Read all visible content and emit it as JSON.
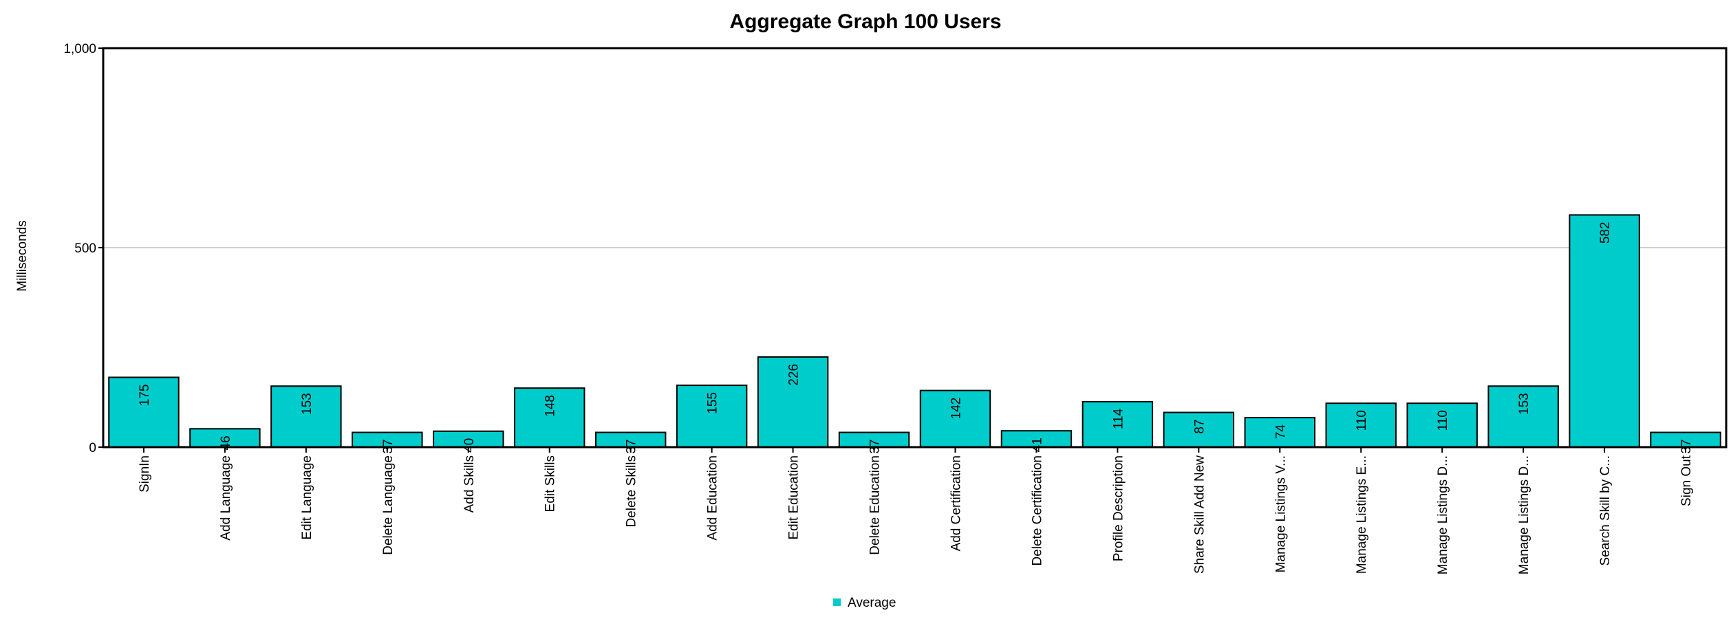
{
  "chart_data": {
    "type": "bar",
    "title": "Aggregate Graph 100 Users",
    "xlabel": "",
    "ylabel": "Milliseconds",
    "ylim": [
      0,
      1000
    ],
    "yticks": [
      {
        "value": 0,
        "label": "0"
      },
      {
        "value": 500,
        "label": "500"
      },
      {
        "value": 1000,
        "label": "1,000"
      }
    ],
    "grid": true,
    "legend_position": "bottom-center",
    "categories": [
      "SignIn",
      "Add Language",
      "Edit Language",
      "Delete Language",
      "Add Skills",
      "Edit Skills",
      "Delete Skills",
      "Add Education",
      "Edit Education",
      "Delete Education",
      "Add Certification",
      "Delete Certification",
      "Profile Description",
      "Share Skill Add New",
      "Manage Listings V...",
      "Manage Listings E...",
      "Manage Listings D...",
      "Manage Listings D...",
      "Search Skill by C...",
      "Sign Out"
    ],
    "series": [
      {
        "name": "Average",
        "color": "#00CCCC",
        "values": [
          175,
          46,
          153,
          37,
          40,
          148,
          37,
          155,
          226,
          37,
          142,
          41,
          114,
          87,
          74,
          110,
          110,
          153,
          582,
          37
        ],
        "value_labels": [
          "175",
          "46",
          "153",
          "37",
          "40",
          "148",
          "37",
          "155",
          "226",
          "37",
          "142",
          "41",
          "114",
          "87",
          "74",
          "110",
          "110",
          "153",
          "582",
          "37"
        ]
      }
    ]
  }
}
